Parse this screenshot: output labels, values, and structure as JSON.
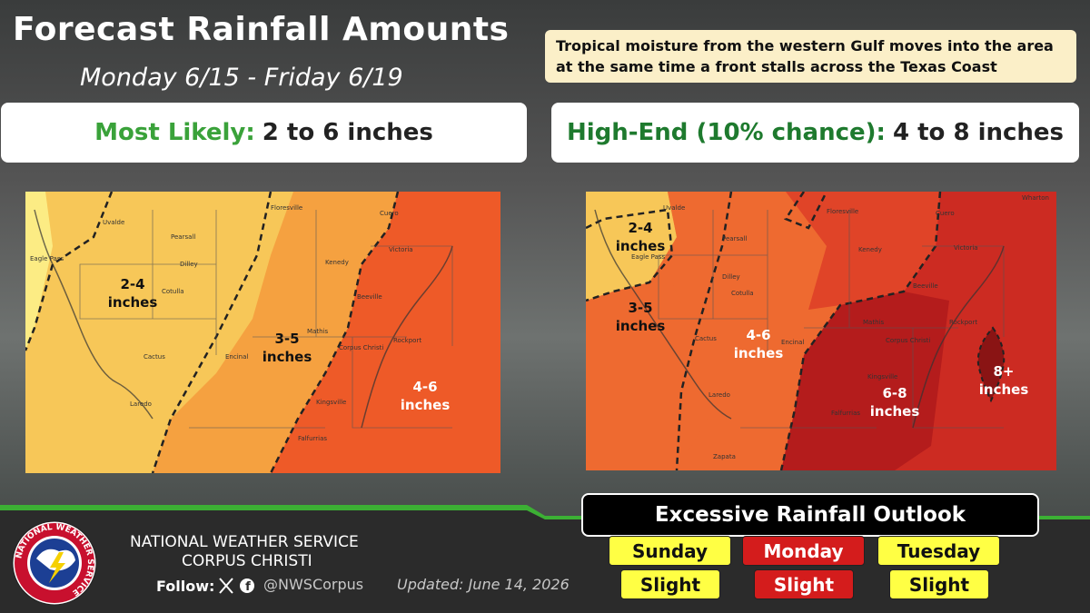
{
  "header": {
    "title": "Forecast Rainfall Amounts",
    "subtitle": "Monday 6/15 - Friday 6/19"
  },
  "note": "Tropical moisture from the western Gulf moves into the area at the same time a front stalls across the Texas Coast",
  "panels": [
    {
      "label": "Most Likely:",
      "value": "2 to 6 inches",
      "zones": [
        "2-4 inches",
        "3-5 inches",
        "4-6 inches"
      ],
      "cities": [
        "Uvalde",
        "Floresville",
        "Cuero",
        "Pearsall",
        "Dilley",
        "Kenedy",
        "Victoria",
        "Eagle Pass",
        "Cotulla",
        "Beeville",
        "Mathis",
        "Rockport",
        "Cactus",
        "Encinal",
        "Corpus Christi",
        "Laredo",
        "Kingsville",
        "Falfurrias"
      ]
    },
    {
      "label": "High-End (10% chance):",
      "value": "4 to 8 inches",
      "zones": [
        "2-4 inches",
        "3-5 inches",
        "4-6 inches",
        "6-8 inches",
        "8+ inches"
      ],
      "cities": [
        "Uvalde",
        "Floresville",
        "Cuero",
        "Wharton",
        "Pearsall",
        "Kenedy",
        "Victoria",
        "Eagle Pass",
        "Dilley",
        "Cotulla",
        "Beeville",
        "Mathis",
        "Rockport",
        "Cactus",
        "Encinal",
        "Corpus Christi",
        "Laredo",
        "Kingsville",
        "Falfurrias",
        "Zapata"
      ]
    }
  ],
  "footer": {
    "org": "NATIONAL WEATHER SERVICE",
    "office": "CORPUS CHRISTI",
    "follow": "Follow:",
    "handle": "@NWSCorpus",
    "updated": "Updated: June 14, 2026",
    "logo": "NATIONAL WEATHER SERVICE"
  },
  "ero": {
    "title": "Excessive Rainfall Outlook",
    "days": [
      {
        "day": "Sunday",
        "risk": "Slight",
        "color": "#ffff44"
      },
      {
        "day": "Monday",
        "risk": "Slight",
        "color": "#d41c1c"
      },
      {
        "day": "Tuesday",
        "risk": "Slight",
        "color": "#ffff44"
      }
    ]
  }
}
